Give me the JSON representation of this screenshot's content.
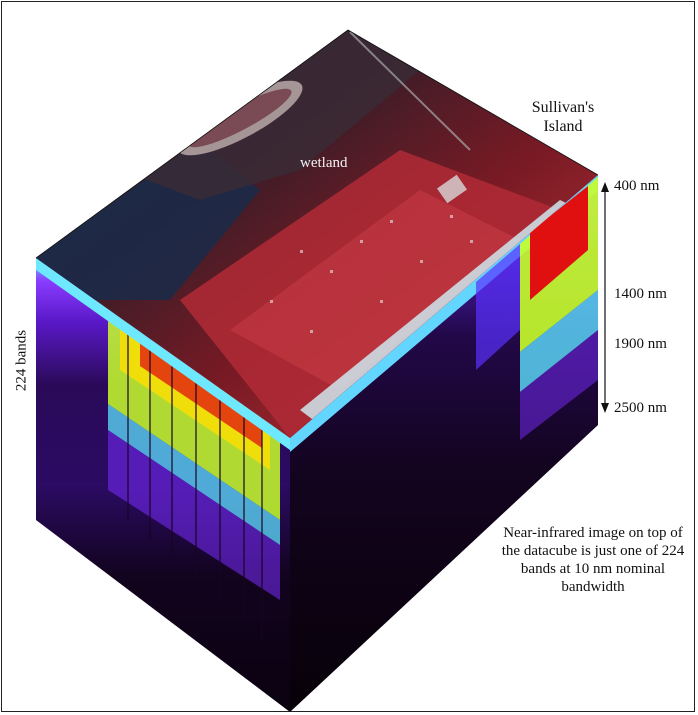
{
  "labels": {
    "island": "Sullivan's Island",
    "wetland": "wetland",
    "bands": "224 bands",
    "wavelengths": [
      "400 nm",
      "1400  nm",
      "1900  nm",
      "2500 nm"
    ],
    "caption": "Near-infrared image on top of the datacube is just one of 224 bands at 10 nm nominal bandwidth"
  },
  "colors": {
    "frame": "#222222",
    "arrow": "#111111",
    "spectrum": [
      "#5ee0ff",
      "#7a2cff",
      "#c8ff2a",
      "#ffde00",
      "#e01010",
      "#1a0422"
    ]
  }
}
